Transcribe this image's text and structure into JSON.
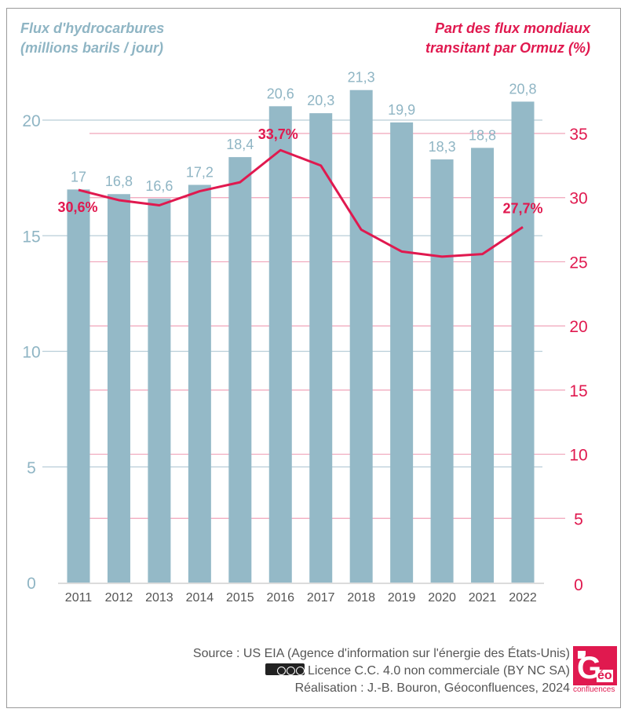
{
  "chart_data": {
    "type": "bar+line",
    "categories": [
      "2011",
      "2012",
      "2013",
      "2014",
      "2015",
      "2016",
      "2017",
      "2018",
      "2019",
      "2020",
      "2021",
      "2022"
    ],
    "series": [
      {
        "name": "Flux d'hydrocarbures (millions barils / jour)",
        "type": "bar",
        "axis": "left",
        "values": [
          17,
          16.8,
          16.6,
          17.2,
          18.4,
          20.6,
          20.3,
          21.3,
          19.9,
          18.3,
          18.8,
          20.8
        ],
        "labels": [
          "17",
          "16,8",
          "16,6",
          "17,2",
          "18,4",
          "20,6",
          "20,3",
          "21,3",
          "19,9",
          "18,3",
          "18,8",
          "20,8"
        ],
        "color": "#94b9c7"
      },
      {
        "name": "Part des flux mondiaux transitant par Ormuz (%)",
        "type": "line",
        "axis": "right",
        "values": [
          30.6,
          29.8,
          29.4,
          30.5,
          31.2,
          33.7,
          32.5,
          27.5,
          25.8,
          25.4,
          25.6,
          27.7
        ],
        "point_labels": {
          "0": "30,6%",
          "5": "33,7%",
          "11": "27,7%"
        },
        "color": "#e0194f"
      }
    ],
    "left_axis": {
      "title_line1": "Flux d'hydrocarbures",
      "title_line2": "(millions barils / jour)",
      "range": [
        0,
        20
      ],
      "ticks": [
        0,
        5,
        10,
        15,
        20
      ],
      "tick_labels": [
        "0",
        "5",
        "10",
        "15",
        "20"
      ],
      "color": "#8fb5c4"
    },
    "right_axis": {
      "title_line1": "Part des flux mondiaux",
      "title_line2": "transitant par Ormuz (%)",
      "range": [
        0,
        35
      ],
      "ticks": [
        0,
        5,
        10,
        15,
        20,
        25,
        30,
        35
      ],
      "tick_labels": [
        "0",
        "5",
        "10",
        "15",
        "20",
        "25",
        "30",
        "35"
      ],
      "color": "#e0194f"
    },
    "grid": true,
    "legend": "none"
  },
  "footer": {
    "source": "Source : US EIA (Agence d'information sur l'énergie des États-Unis)",
    "licence": "Licence C.C. 4.0 non commerciale (BY NC SA)",
    "credit": "Réalisation : J.-B. Bouron, Géoconfluences, 2024"
  },
  "logo": {
    "letter": "G",
    "accent": "éo",
    "text": "confluences"
  }
}
